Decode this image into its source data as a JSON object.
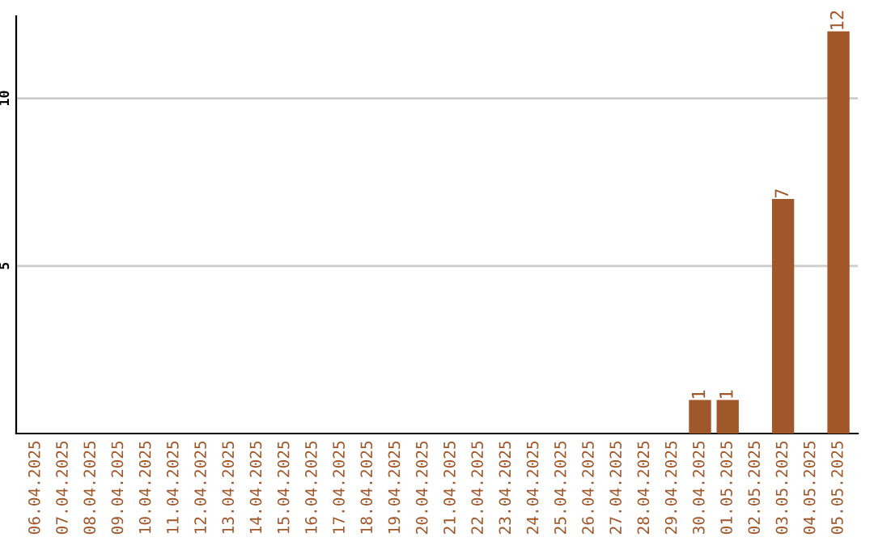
{
  "chart_data": {
    "type": "bar",
    "categories": [
      "06.04.2025",
      "07.04.2025",
      "08.04.2025",
      "09.04.2025",
      "10.04.2025",
      "11.04.2025",
      "12.04.2025",
      "13.04.2025",
      "14.04.2025",
      "15.04.2025",
      "16.04.2025",
      "17.04.2025",
      "18.04.2025",
      "19.04.2025",
      "20.04.2025",
      "21.04.2025",
      "22.04.2025",
      "23.04.2025",
      "24.04.2025",
      "25.04.2025",
      "26.04.2025",
      "27.04.2025",
      "28.04.2025",
      "29.04.2025",
      "30.04.2025",
      "01.05.2025",
      "02.05.2025",
      "03.05.2025",
      "04.05.2025",
      "05.05.2025"
    ],
    "values": [
      0,
      0,
      0,
      0,
      0,
      0,
      0,
      0,
      0,
      0,
      0,
      0,
      0,
      0,
      0,
      0,
      0,
      0,
      0,
      0,
      0,
      0,
      0,
      0,
      1,
      1,
      0,
      7,
      0,
      12
    ],
    "value_labels": [
      null,
      null,
      null,
      null,
      null,
      null,
      null,
      null,
      null,
      null,
      null,
      null,
      null,
      null,
      null,
      null,
      null,
      null,
      null,
      null,
      null,
      null,
      null,
      null,
      "1",
      "1",
      null,
      "7",
      null,
      "12"
    ],
    "color": "#a0572a",
    "ylim": [
      0,
      12.45
    ],
    "yticks": [
      5,
      10
    ],
    "grid": "y"
  }
}
